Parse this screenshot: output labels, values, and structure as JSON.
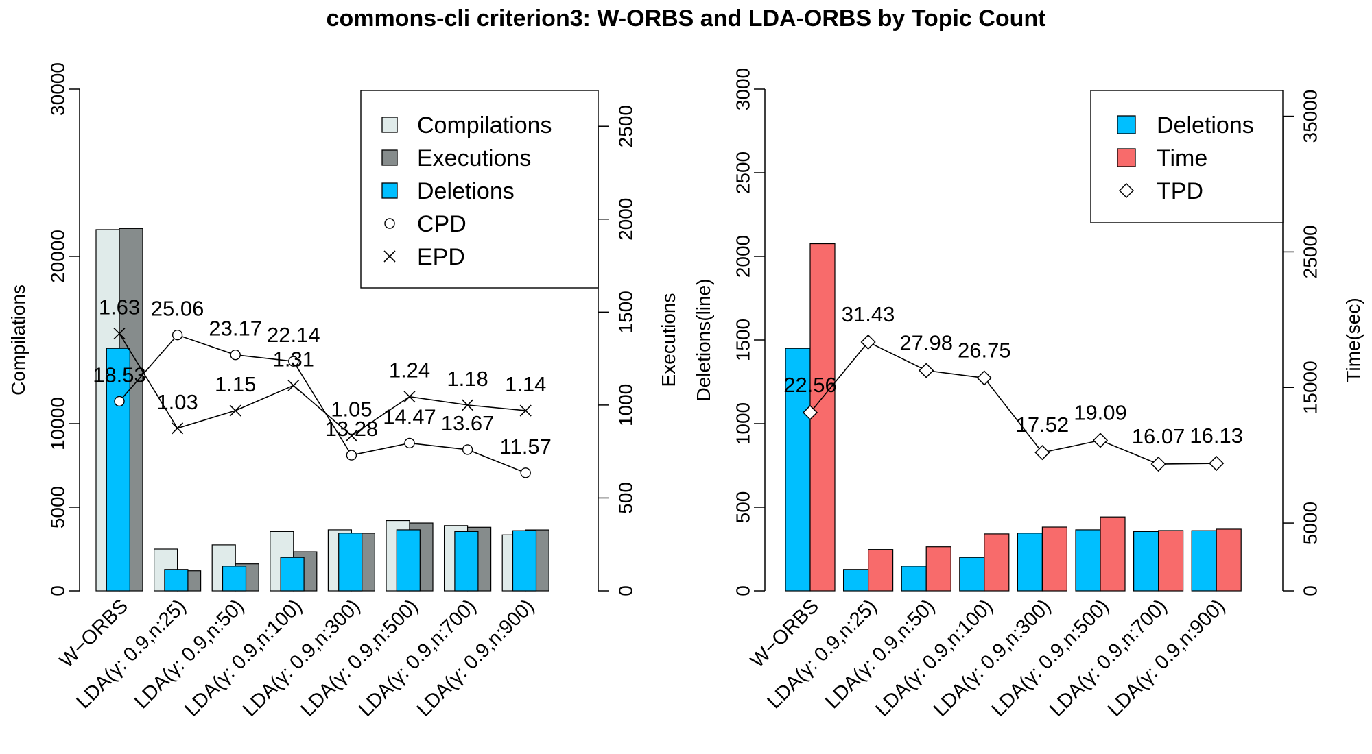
{
  "title": "commons-cli criterion3: W-ORBS and LDA-ORBS by Topic Count",
  "colors": {
    "compilations": "#e0ebea",
    "executions": "#868c8c",
    "deletions": "#00bfff",
    "time": "#f86b6b"
  },
  "chart_data": [
    {
      "type": "bar",
      "categories": [
        "W−ORBS",
        "LDA(γ: 0.9,n:25)",
        "LDA(γ: 0.9,n:50)",
        "LDA(γ: 0.9,n:100)",
        "LDA(γ: 0.9,n:300)",
        "LDA(γ: 0.9,n:500)",
        "LDA(γ: 0.9,n:700)",
        "LDA(γ: 0.9,n:900)"
      ],
      "ylabel": "Compilations",
      "ylabel_right": "Executions",
      "ylim": [
        0,
        30000
      ],
      "ylim_right": [
        0,
        2700
      ],
      "yticks": [
        0,
        5000,
        10000,
        20000,
        30000
      ],
      "yticks_right": [
        0,
        500,
        1000,
        1500,
        2000,
        2500
      ],
      "legend": {
        "position": "top-right",
        "entries": [
          "Compilations",
          "Executions",
          "Deletions",
          "CPD",
          "EPD"
        ]
      },
      "series": [
        {
          "name": "Compilations",
          "axis": "left",
          "values": [
            21600,
            2500,
            2750,
            3550,
            3650,
            4200,
            3900,
            3350
          ]
        },
        {
          "name": "Executions",
          "axis": "right",
          "values": [
            1950,
            108,
            145,
            210,
            310,
            365,
            342,
            328
          ]
        },
        {
          "name": "Deletions",
          "axis": "deletions",
          "ylim": [
            0,
            3000
          ],
          "values": [
            1450,
            128,
            148,
            200,
            345,
            365,
            355,
            360
          ]
        },
        {
          "name": "CPD",
          "axis": "right",
          "labels": [
            "18.53",
            "25.06",
            "23.17",
            "22.14",
            "13.28",
            "14.47",
            "13.67",
            "11.57"
          ],
          "values": [
            1020,
            1377,
            1270,
            1235,
            730,
            795,
            760,
            635
          ]
        },
        {
          "name": "EPD",
          "axis": "right",
          "labels": [
            "1.63",
            "1.03",
            "1.15",
            "1.31",
            "1.05",
            "1.24",
            "1.18",
            "1.14"
          ],
          "values": [
            1385,
            875,
            970,
            1105,
            835,
            1045,
            1000,
            970
          ]
        }
      ]
    },
    {
      "type": "bar",
      "categories": [
        "W−ORBS",
        "LDA(γ: 0.9,n:25)",
        "LDA(γ: 0.9,n:50)",
        "LDA(γ: 0.9,n:100)",
        "LDA(γ: 0.9,n:300)",
        "LDA(γ: 0.9,n:500)",
        "LDA(γ: 0.9,n:700)",
        "LDA(γ: 0.9,n:900)"
      ],
      "ylabel": "Deletions(line)",
      "ylabel_right": "Time(sec)",
      "ylim": [
        0,
        3000
      ],
      "ylim_right": [
        0,
        37000
      ],
      "yticks": [
        0,
        500,
        1000,
        1500,
        2000,
        2500,
        3000
      ],
      "yticks_right": [
        0,
        5000,
        15000,
        25000,
        35000
      ],
      "legend": {
        "position": "top-right",
        "entries": [
          "Deletions",
          "Time",
          "TPD"
        ]
      },
      "series": [
        {
          "name": "Deletions",
          "axis": "left",
          "values": [
            1450,
            128,
            148,
            200,
            345,
            365,
            355,
            360
          ]
        },
        {
          "name": "Time",
          "axis": "right",
          "values": [
            25600,
            3050,
            3250,
            4200,
            4700,
            5450,
            4450,
            4550
          ]
        },
        {
          "name": "TPD",
          "axis": "right",
          "labels": [
            "22.56",
            "31.43",
            "27.98",
            "26.75",
            "17.52",
            "19.09",
            "16.07",
            "16.13"
          ],
          "values": [
            13150,
            18350,
            16250,
            15700,
            10200,
            11100,
            9350,
            9400
          ]
        }
      ]
    }
  ]
}
